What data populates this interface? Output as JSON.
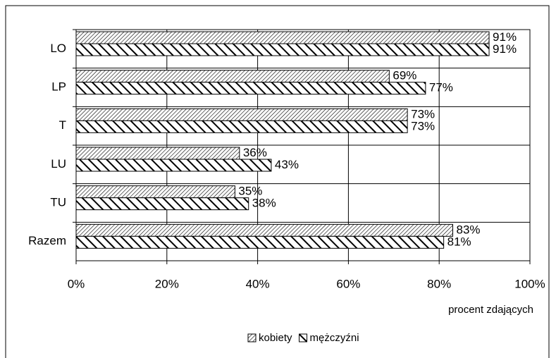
{
  "chart_data": {
    "type": "hbar",
    "categories": [
      "LO",
      "LP",
      "T",
      "LU",
      "TU",
      "Razem"
    ],
    "series": [
      {
        "name": "kobiety",
        "color": "#000000",
        "values": [
          91,
          69,
          73,
          36,
          35,
          83
        ],
        "value_labels": [
          "91%",
          "69%",
          "73%",
          "36%",
          "35%",
          "83%"
        ]
      },
      {
        "name": "mężczyźni",
        "color": "#000000",
        "values": [
          91,
          77,
          73,
          43,
          38,
          81
        ],
        "value_labels": [
          "91%",
          "77%",
          "73%",
          "43%",
          "38%",
          "81%"
        ]
      }
    ],
    "xlim": [
      0,
      100
    ],
    "xticks": [
      {
        "value": 0,
        "label": "0%"
      },
      {
        "value": 20,
        "label": "20%"
      },
      {
        "value": 40,
        "label": "40%"
      },
      {
        "value": 60,
        "label": "60%"
      },
      {
        "value": 80,
        "label": "80%"
      },
      {
        "value": 100,
        "label": "100%"
      }
    ],
    "x_label": "procent zdających",
    "grid": true,
    "legend": "bottom"
  }
}
